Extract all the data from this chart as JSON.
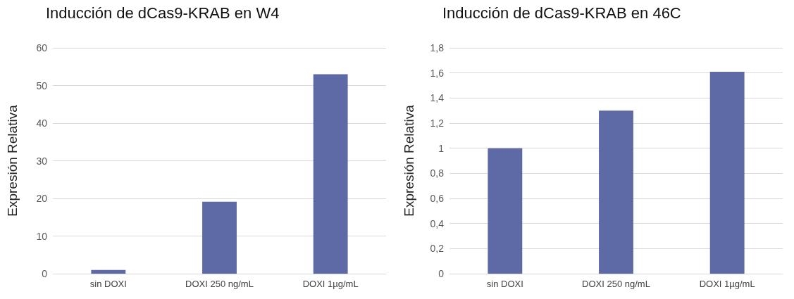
{
  "chart_data": [
    {
      "type": "bar",
      "title": "Inducción de dCas9-KRAB en W4",
      "ylabel": "Expresión Relativa",
      "categories": [
        "sin DOXI",
        "DOXI 250 ng/mL",
        "DOXI 1µg/mL"
      ],
      "values": [
        1,
        19.1,
        53
      ],
      "color": "#5d6aa6",
      "ylim": [
        0,
        60
      ],
      "yticks": [
        0,
        10,
        20,
        30,
        40,
        50,
        60
      ],
      "grid": "y"
    },
    {
      "type": "bar",
      "title": "Inducción de dCas9-KRAB en 46C",
      "ylabel": "Expresión Relativa",
      "categories": [
        "sin DOXI",
        "DOXI 250 ng/mL",
        "DOXI 1µg/mL"
      ],
      "values": [
        1,
        1.3,
        1.61
      ],
      "color": "#5d6aa6",
      "ylim": [
        0,
        1.8
      ],
      "yticks": [
        0,
        {
          "value": 0.2,
          "label": "0,2"
        },
        {
          "value": 0.4,
          "label": "0,4"
        },
        {
          "value": 0.6,
          "label": "0,6"
        },
        {
          "value": 0.8,
          "label": "0,8"
        },
        1,
        {
          "value": 1.2,
          "label": "1,2"
        },
        {
          "value": 1.4,
          "label": "1,4"
        },
        {
          "value": 1.6,
          "label": "1,6"
        },
        {
          "value": 1.8,
          "label": "1,8"
        }
      ],
      "grid": "y"
    }
  ]
}
